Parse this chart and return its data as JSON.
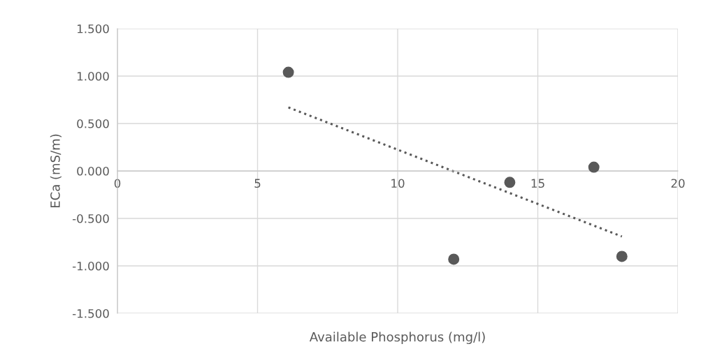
{
  "chart_data": {
    "type": "scatter",
    "xlabel": "Available Phosphorus (mg/l)",
    "ylabel": "ECa (mS/m)",
    "xlim": [
      0,
      20
    ],
    "xticks": [
      0,
      5,
      10,
      15,
      20
    ],
    "ylim": [
      -1.5,
      1.5
    ],
    "yticks": [
      {
        "value": -1.5,
        "label": "-1.500"
      },
      {
        "value": -1.0,
        "label": "-1.000"
      },
      {
        "value": -0.5,
        "label": "-0.500"
      },
      {
        "value": 0,
        "label": "0.000"
      },
      {
        "value": 0.5,
        "label": "0.500"
      },
      {
        "value": 1.0,
        "label": "1.000"
      },
      {
        "value": 1.5,
        "label": "1.500"
      }
    ],
    "grid": true,
    "marker": "circle",
    "series": [
      {
        "color": "#595959",
        "x": [
          6.1,
          12,
          14,
          17,
          18
        ],
        "values": [
          1.04,
          -0.93,
          -0.12,
          0.04,
          -0.9
        ]
      },
      {
        "type": "line",
        "color": "#595959",
        "line_style": "dotted",
        "marker": "none",
        "x": [
          6.1,
          18
        ],
        "values": [
          0.67,
          -0.69
        ]
      }
    ]
  }
}
